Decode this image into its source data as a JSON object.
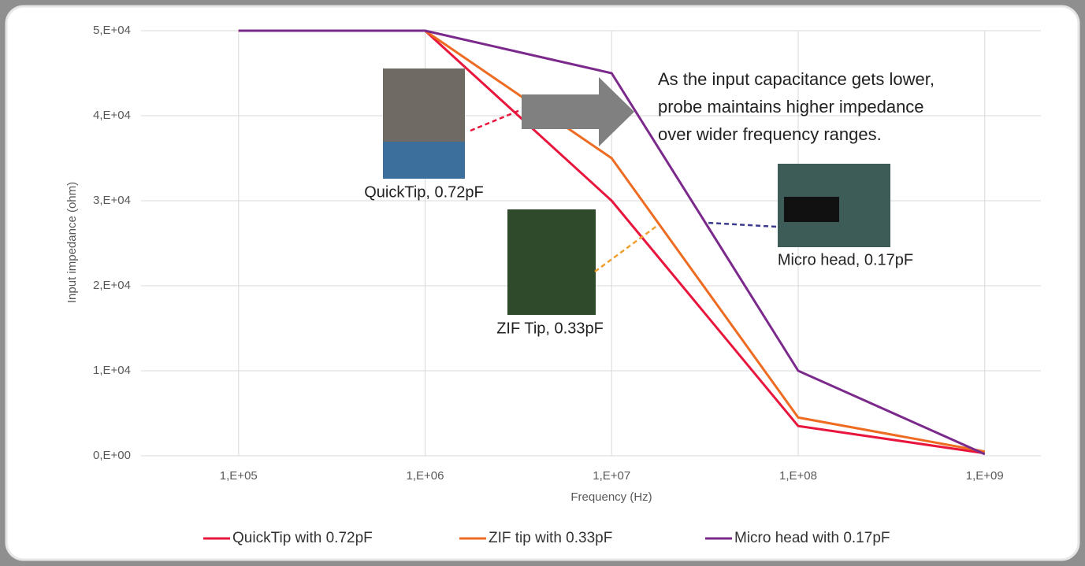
{
  "chart_data": {
    "type": "line",
    "x_label": "Frequency (Hz)",
    "y_label": "Input impedance (ohm)",
    "x": [
      100000,
      1000000,
      10000000,
      100000000,
      1000000000
    ],
    "series": [
      {
        "name": "QuickTip with 0.72pF",
        "color": "#e8163c",
        "values": [
          50000,
          50000,
          30000,
          3500,
          300
        ]
      },
      {
        "name": "ZIF tip with 0.33pF",
        "color": "#ee6b22",
        "values": [
          50000,
          50000,
          35000,
          4500,
          500
        ]
      },
      {
        "name": "Micro head with 0.17pF",
        "color": "#7b2a8c",
        "values": [
          50000,
          50000,
          45000,
          10000,
          200
        ]
      }
    ],
    "xlog": true,
    "xlim": [
      30000,
      2000000000
    ],
    "xticks": [
      {
        "value": 100000,
        "label": "1,E+05"
      },
      {
        "value": 1000000,
        "label": "1,E+06"
      },
      {
        "value": 10000000,
        "label": "1,E+07"
      },
      {
        "value": 100000000,
        "label": "1,E+08"
      },
      {
        "value": 1000000000,
        "label": "1,E+09"
      }
    ],
    "ylim": [
      0,
      50000
    ],
    "yticks": [
      {
        "value": 0,
        "label": "0,E+00"
      },
      {
        "value": 10000,
        "label": "1,E+04"
      },
      {
        "value": 20000,
        "label": "2,E+04"
      },
      {
        "value": 30000,
        "label": "3,E+04"
      },
      {
        "value": 40000,
        "label": "4,E+04"
      },
      {
        "value": 50000,
        "label": "5,E+04"
      }
    ],
    "grid": true,
    "legend": "bottom",
    "callout": [
      "As the input capacitance gets lower,",
      "probe maintains higher impedance",
      "over wider frequency ranges."
    ],
    "photo_labels": [
      "QuickTip, 0.72pF",
      "ZIF Tip, 0.33pF",
      "Micro head, 0.17pF"
    ]
  }
}
